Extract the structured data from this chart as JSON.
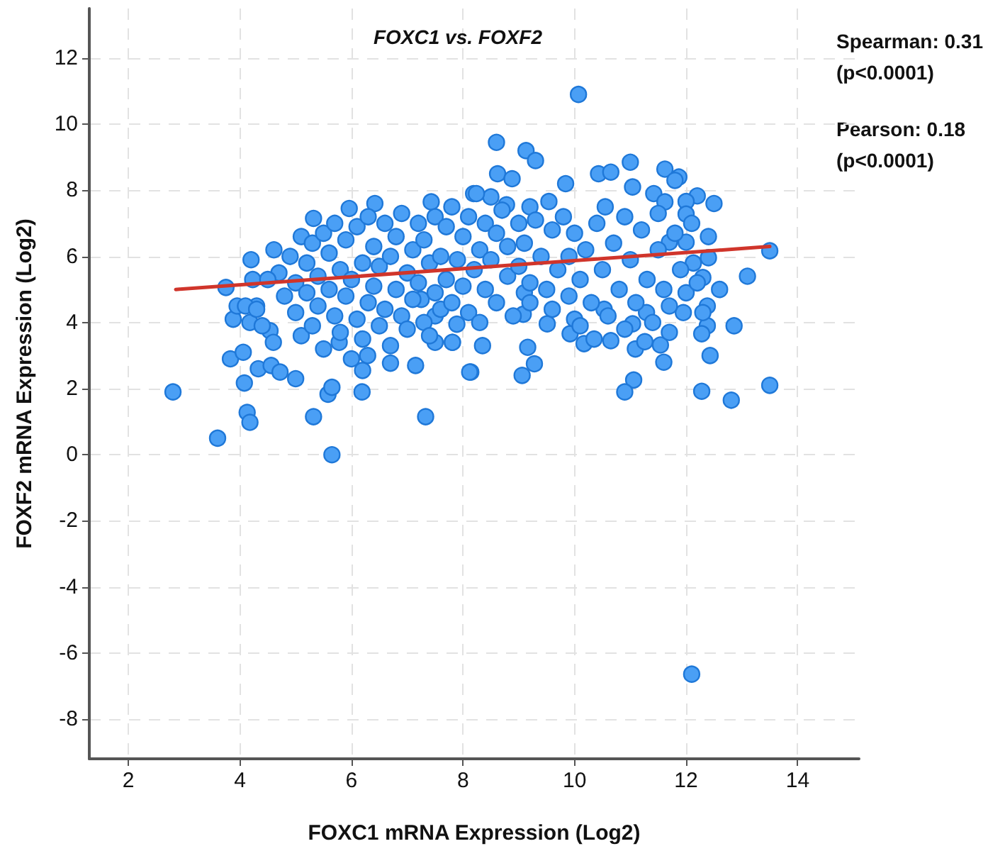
{
  "chart_data": {
    "type": "scatter",
    "title": "FOXC1 vs. FOXF2",
    "xlabel": "FOXC1 mRNA Expression (Log2)",
    "ylabel": "FOXF2 mRNA Expression (Log2)",
    "annotations": [
      "Spearman: 0.31\n(p<0.0001)",
      "Pearson: 0.18\n(p<0.0001)"
    ],
    "xlim": [
      1.3,
      15.1
    ],
    "ylim": [
      -9.2,
      13.5
    ],
    "xticks": [
      2,
      4,
      6,
      8,
      10,
      12,
      14
    ],
    "yticks": [
      -8,
      -6,
      -4,
      -2,
      0,
      2,
      4,
      6,
      8,
      10,
      12
    ],
    "grid": true,
    "marker": "circle",
    "series": [
      {
        "type": "scatter",
        "color": "#4a9ff5",
        "x": [
          2.8,
          3.6,
          5.65,
          4.13,
          4.18,
          5.32,
          7.33,
          6.19,
          5.58,
          5.65,
          4.08,
          3.83,
          4.06,
          4.33,
          4.56,
          4.72,
          5.0,
          6.7,
          7.15,
          8.14,
          6.2,
          3.75,
          4.2,
          3.88,
          4.18,
          3.95,
          4.3,
          4.61,
          4.23,
          5.32,
          5.96,
          6.42,
          7.43,
          8.19,
          5.1,
          4.54,
          5.78,
          6.29,
          7.81,
          7.89,
          7.5,
          7.25,
          8.6,
          9.13,
          9.3,
          8.62,
          8.88,
          9.84,
          10.43,
          10.65,
          11.0,
          11.62,
          11.87,
          12.2,
          13.5,
          13.1,
          12.4,
          12.3,
          12.13,
          12.38,
          12.86,
          12.38,
          12.28,
          12.43,
          11.95,
          11.6,
          12.28,
          12.81,
          13.5,
          11.06,
          10.9,
          8.35,
          8.12,
          9.06,
          9.28,
          9.16,
          9.92,
          10.17,
          10.35,
          10.65,
          11.09,
          11.26,
          11.54,
          11.7,
          11.29,
          11.04,
          9.51,
          9.08,
          9.1,
          10.0,
          10.53,
          7.81,
          7.5,
          10.55,
          11.04,
          11.42,
          11.8,
          11.62,
          12.0,
          12.0,
          12.0,
          11.7,
          9.2,
          9.54,
          8.5,
          8.24,
          8.78,
          12.1,
          10.07,
          4.7,
          4.8,
          4.9,
          5.0,
          5.0,
          5.1,
          5.2,
          5.2,
          5.3,
          5.3,
          5.4,
          5.4,
          5.5,
          5.5,
          5.6,
          5.6,
          5.7,
          5.7,
          5.8,
          5.8,
          5.9,
          5.9,
          6.0,
          6.0,
          6.1,
          6.1,
          6.2,
          6.2,
          6.3,
          6.3,
          6.4,
          6.4,
          6.5,
          6.5,
          6.6,
          6.6,
          6.7,
          6.7,
          6.8,
          6.8,
          6.9,
          6.9,
          7.0,
          7.0,
          7.1,
          7.1,
          7.2,
          7.2,
          7.3,
          7.3,
          7.4,
          7.4,
          7.5,
          7.5,
          7.6,
          7.6,
          7.7,
          7.7,
          7.8,
          7.8,
          7.9,
          8.0,
          8.0,
          8.1,
          8.1,
          8.2,
          8.3,
          8.3,
          8.4,
          8.4,
          8.5,
          8.6,
          8.6,
          8.7,
          8.8,
          8.8,
          8.9,
          9.0,
          9.0,
          9.1,
          9.2,
          9.2,
          9.3,
          9.4,
          9.5,
          9.6,
          9.6,
          9.7,
          9.8,
          9.9,
          9.9,
          10.0,
          10.1,
          10.1,
          10.2,
          10.3,
          10.4,
          10.5,
          10.6,
          10.7,
          10.8,
          10.9,
          10.9,
          11.0,
          11.1,
          11.2,
          11.3,
          11.4,
          11.5,
          11.5,
          11.6,
          11.7,
          11.8,
          11.9,
          12.0,
          12.1,
          12.2,
          12.3,
          12.4,
          12.5,
          12.6,
          4.1,
          4.3,
          4.5,
          4.4,
          4.6
        ],
        "values": [
          1.9,
          0.5,
          0.0,
          1.28,
          0.98,
          1.15,
          1.15,
          1.9,
          1.83,
          2.04,
          2.17,
          2.9,
          3.1,
          2.6,
          2.7,
          2.5,
          2.3,
          2.77,
          2.7,
          2.5,
          2.55,
          5.06,
          5.9,
          4.1,
          4.0,
          4.5,
          4.5,
          6.2,
          5.3,
          7.15,
          7.45,
          7.6,
          7.65,
          7.9,
          6.6,
          3.75,
          3.4,
          3.0,
          3.4,
          3.95,
          4.2,
          4.7,
          9.45,
          9.2,
          8.9,
          8.5,
          8.35,
          8.2,
          8.5,
          8.55,
          8.85,
          8.64,
          8.4,
          7.83,
          6.17,
          5.4,
          5.96,
          5.36,
          5.8,
          4.5,
          3.9,
          3.9,
          3.66,
          3.0,
          4.3,
          2.8,
          1.92,
          1.65,
          2.1,
          2.26,
          1.9,
          3.3,
          2.5,
          2.4,
          2.75,
          3.25,
          3.66,
          3.36,
          3.5,
          3.45,
          3.2,
          3.42,
          3.32,
          3.7,
          4.3,
          3.96,
          3.96,
          4.25,
          4.9,
          4.1,
          4.4,
          3.4,
          3.4,
          7.5,
          8.1,
          7.9,
          8.3,
          7.65,
          7.66,
          7.28,
          6.43,
          6.43,
          7.5,
          7.66,
          7.8,
          7.9,
          7.56,
          -6.64,
          10.9,
          5.5,
          4.8,
          6.0,
          5.2,
          4.3,
          3.6,
          5.8,
          4.9,
          6.4,
          3.9,
          5.4,
          4.5,
          6.7,
          3.2,
          5.0,
          6.1,
          4.2,
          7.0,
          5.6,
          3.7,
          4.8,
          6.5,
          5.3,
          2.9,
          4.1,
          6.9,
          5.8,
          3.5,
          4.6,
          7.2,
          5.1,
          6.3,
          3.9,
          5.7,
          4.4,
          7.0,
          6.0,
          3.3,
          5.0,
          6.6,
          4.2,
          7.3,
          5.5,
          3.8,
          6.2,
          4.7,
          7.0,
          5.2,
          4.0,
          6.5,
          5.8,
          3.6,
          4.9,
          7.2,
          6.0,
          4.4,
          5.3,
          6.9,
          4.6,
          7.5,
          5.9,
          5.1,
          6.6,
          4.3,
          7.2,
          5.6,
          6.2,
          4.0,
          7.0,
          5.0,
          5.9,
          6.7,
          4.6,
          7.4,
          5.4,
          6.3,
          4.2,
          7.0,
          5.7,
          6.4,
          4.6,
          5.2,
          7.1,
          6.0,
          5.0,
          6.8,
          4.4,
          5.6,
          7.2,
          6.0,
          4.8,
          6.7,
          5.3,
          3.9,
          6.2,
          4.6,
          7.0,
          5.6,
          4.2,
          6.4,
          5.0,
          7.2,
          3.8,
          5.9,
          4.6,
          6.8,
          5.3,
          4.0,
          6.2,
          7.3,
          5.0,
          4.5,
          6.7,
          5.6,
          4.9,
          7.0,
          5.2,
          4.3,
          6.6,
          7.6,
          5.0,
          4.5,
          4.4,
          5.3,
          3.9,
          3.4
        ]
      },
      {
        "type": "line",
        "color": "#d0352b",
        "marker": "none",
        "x": [
          2.85,
          13.5
        ],
        "values": [
          5.0,
          6.3
        ]
      }
    ]
  }
}
